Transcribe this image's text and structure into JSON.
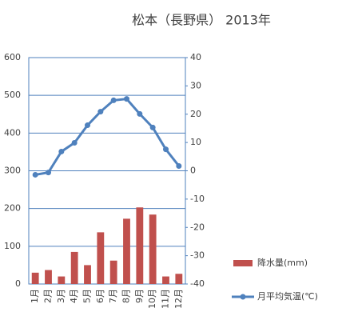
{
  "chart_data": {
    "type": "bar_line",
    "title": "松本（長野県） 2013年",
    "categories": [
      "1月",
      "2月",
      "3月",
      "4月",
      "5月",
      "6月",
      "7月",
      "8月",
      "9月",
      "10月",
      "11月",
      "12月"
    ],
    "series": [
      {
        "name": "降水量(mm)",
        "type": "bar",
        "color": "#c0504d",
        "values": [
          30,
          37,
          20,
          85,
          50,
          137,
          62,
          173,
          203,
          184,
          20,
          27
        ]
      },
      {
        "name": "月平均気温(℃)",
        "type": "line",
        "axis": "y2",
        "color": "#4f81bd",
        "values": [
          -1.4,
          -0.6,
          6.8,
          9.9,
          16.1,
          20.9,
          24.9,
          25.4,
          20.1,
          15.3,
          7.6,
          1.7
        ]
      }
    ],
    "ylim": [
      0,
      600
    ],
    "yticks": [
      0,
      100,
      200,
      300,
      400,
      500,
      600
    ],
    "y2lim": [
      -40,
      40
    ],
    "y2ticks": [
      -40,
      -30,
      -20,
      -10,
      0,
      10,
      20,
      30,
      40
    ],
    "grid": true,
    "legend": "lower right"
  }
}
